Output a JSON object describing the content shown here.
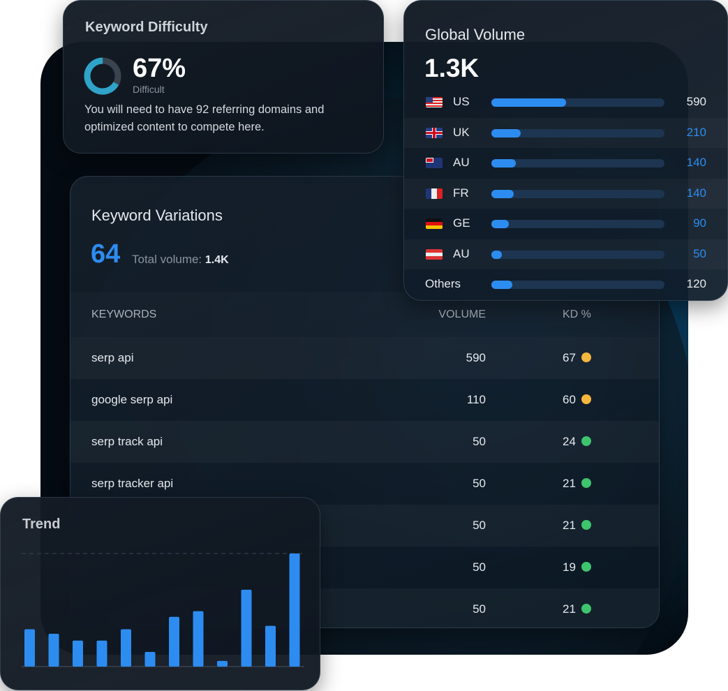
{
  "keyword_difficulty": {
    "title": "Keyword Difficulty",
    "percent": "67%",
    "percent_value": 67,
    "label": "Difficult",
    "description": "You will need to have 92 referring domains and optimized content to compete here.",
    "colors": {
      "ring": "#2fa3c8",
      "track": "#3a4450"
    }
  },
  "keyword_variations": {
    "title": "Keyword Variations",
    "count": "64",
    "total_label": "Total volume:",
    "total_value": "1.4K",
    "columns": [
      "KEYWORDS",
      "VOLUME",
      "KD %"
    ],
    "rows": [
      {
        "keyword": "serp api",
        "volume": "590",
        "kd": "67",
        "status": "yellow"
      },
      {
        "keyword": "google serp api",
        "volume": "110",
        "kd": "60",
        "status": "yellow"
      },
      {
        "keyword": "serp track api",
        "volume": "50",
        "kd": "24",
        "status": "green"
      },
      {
        "keyword": "serp tracker api",
        "volume": "50",
        "kd": "21",
        "status": "green"
      },
      {
        "keyword": "",
        "volume": "50",
        "kd": "21",
        "status": "green"
      },
      {
        "keyword": "",
        "volume": "50",
        "kd": "19",
        "status": "green"
      },
      {
        "keyword": "",
        "volume": "50",
        "kd": "21",
        "status": "green"
      }
    ],
    "status_colors": {
      "yellow": "#f5b83d",
      "green": "#3ec46d"
    }
  },
  "global_volume": {
    "title": "Global Volume",
    "total": "1.3K",
    "countries": [
      {
        "code": "US",
        "flag": "us-flag",
        "value": "590",
        "share": 43,
        "highlight": false
      },
      {
        "code": "UK",
        "flag": "uk-flag",
        "value": "210",
        "share": 17,
        "highlight": true
      },
      {
        "code": "AU",
        "flag": "australia-flag",
        "value": "140",
        "share": 14,
        "highlight": true
      },
      {
        "code": "FR",
        "flag": "france-flag",
        "value": "140",
        "share": 13,
        "highlight": true
      },
      {
        "code": "GE",
        "flag": "germany-flag",
        "value": "90",
        "share": 10,
        "highlight": true
      },
      {
        "code": "AU",
        "flag": "austria-flag",
        "value": "50",
        "share": 6,
        "highlight": true
      },
      {
        "code": "Others",
        "flag": "",
        "value": "120",
        "share": 12,
        "highlight": false
      }
    ],
    "accent": "#2d8cf0"
  },
  "trend": {
    "title": "Trend"
  },
  "chart_data": {
    "type": "bar",
    "title": "Trend",
    "values": [
      33,
      29,
      23,
      23,
      33,
      13,
      44,
      49,
      5,
      68,
      36,
      100
    ],
    "ylim": [
      0,
      100
    ],
    "grid": "dashed top line",
    "color": "#2d8cf0"
  }
}
